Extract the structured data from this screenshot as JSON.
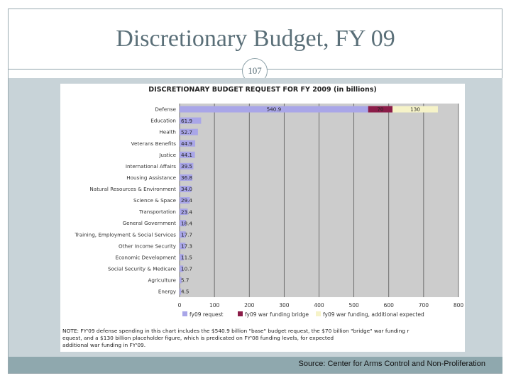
{
  "slide": {
    "title": "Discretionary Budget, FY 09",
    "page_number": "107",
    "source": "Source: Center for Arms Control and Non-Proliferation"
  },
  "colors": {
    "request": "#a9a6e8",
    "bridge": "#8b1c48",
    "additional": "#f6f3c8",
    "plot_bg": "#cccccc",
    "panel": "#c8d3d8",
    "footer": "#8fa8ae"
  },
  "chart_data": {
    "type": "bar",
    "orientation": "horizontal",
    "stacked": true,
    "title": "DISCRETIONARY BUDGET REQUEST FOR FY 2009 (in billions)",
    "categories": [
      "Defense",
      "Education",
      "Health",
      "Veterans Benefits",
      "Justice",
      "International Affairs",
      "Housing Assistance",
      "Natural Resources & Environment",
      "Science & Space",
      "Transportation",
      "General Government",
      "Training, Employment & Social Services",
      "Other Income Security",
      "Economic Development",
      "Social Security & Medicare",
      "Agriculture",
      "Energy"
    ],
    "series": [
      {
        "name": "fy09 request",
        "values": [
          540.9,
          61.9,
          52.7,
          44.9,
          44.1,
          39.5,
          36.8,
          34.0,
          29.4,
          23.4,
          18.4,
          17.7,
          17.3,
          11.5,
          10.7,
          5.7,
          4.5
        ],
        "labels": [
          "540.9",
          "61.9",
          "52.7",
          "44.9",
          "44.1",
          "39.5",
          "36.8",
          "34.0",
          "29.4",
          "23.4",
          "18.4",
          "17.7",
          "17.3",
          "11.5",
          "10.7",
          "5.7",
          "4.5"
        ]
      },
      {
        "name": "fy09 war funding bridge",
        "values": [
          70,
          0,
          0,
          0,
          0,
          0,
          0,
          0,
          0,
          0,
          0,
          0,
          0,
          0,
          0,
          0,
          0
        ],
        "labels": [
          "70",
          "",
          "",
          "",
          "",
          "",
          "",
          "",
          "",
          "",
          "",
          "",
          "",
          "",
          "",
          "",
          ""
        ]
      },
      {
        "name": "fy09 war funding, additional expected",
        "values": [
          130,
          0,
          0,
          0,
          0,
          0,
          0,
          0,
          0,
          0,
          0,
          0,
          0,
          0,
          0,
          0,
          0
        ],
        "labels": [
          "130",
          "",
          "",
          "",
          "",
          "",
          "",
          "",
          "",
          "",
          "",
          "",
          "",
          "",
          "",
          "",
          ""
        ]
      }
    ],
    "xlim": [
      0,
      800
    ],
    "xticks": [
      "0",
      "100",
      "200",
      "300",
      "400",
      "500",
      "600",
      "700",
      "800"
    ],
    "grid": true,
    "legend_position": "bottom",
    "note": "NOTE: FY'09 defense spending in this chart includes the $540.9 billion \"base\" budget request, the $70 billion \"bridge\" war funding request, and a $130 billion placeholder figure, which is predicated on FY'08 funding levels, for expected additional war funding in FY'09."
  }
}
